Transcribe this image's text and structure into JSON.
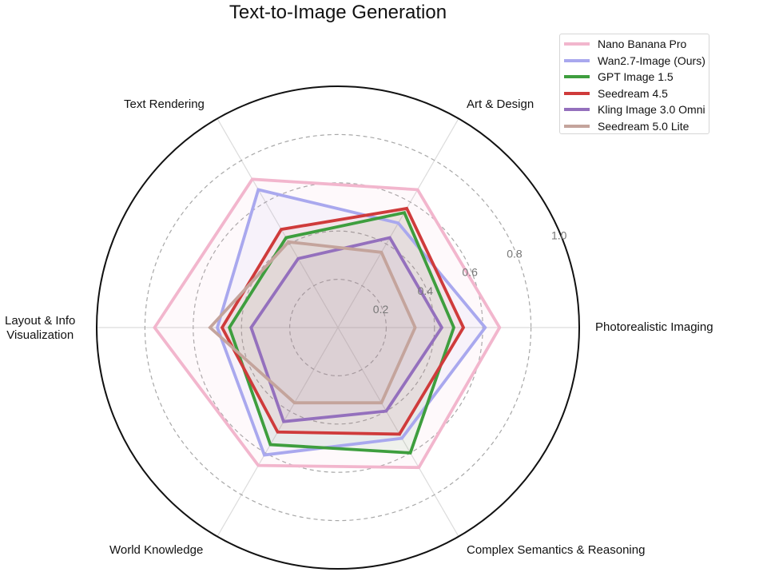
{
  "chart_data": {
    "type": "radar",
    "title": "Text-to-Image Generation",
    "axes": [
      "Photorealistic Imaging",
      "Art & Design",
      "Text Rendering",
      "Layout & Info Visualization",
      "World Knowledge",
      "Complex Semantics & Reasoning"
    ],
    "radial_ticks": [
      "0.2",
      "0.4",
      "0.6",
      "0.8",
      "1.0"
    ],
    "rlim": [
      0,
      1.0
    ],
    "grid": true,
    "legend_position": "upper right",
    "series": [
      {
        "name": "Nano Banana Pro",
        "color": "#f2b6cd",
        "values": [
          0.67,
          0.66,
          0.71,
          0.76,
          0.66,
          0.67
        ]
      },
      {
        "name": "Wan2.7-Image (Ours)",
        "color": "#a9a8ee",
        "values": [
          0.61,
          0.5,
          0.66,
          0.5,
          0.61,
          0.53
        ]
      },
      {
        "name": "GPT Image 1.5",
        "color": "#3e9e3e",
        "values": [
          0.48,
          0.55,
          0.43,
          0.45,
          0.56,
          0.6
        ]
      },
      {
        "name": "Seedream 4.5",
        "color": "#cf3b3b",
        "values": [
          0.52,
          0.57,
          0.47,
          0.48,
          0.5,
          0.51
        ]
      },
      {
        "name": "Kling Image 3.0 Omni",
        "color": "#9470bd",
        "values": [
          0.43,
          0.43,
          0.33,
          0.36,
          0.45,
          0.4
        ]
      },
      {
        "name": "Seedream 5.0 Lite",
        "color": "#c4a49c",
        "values": [
          0.32,
          0.36,
          0.41,
          0.53,
          0.36,
          0.36
        ]
      }
    ]
  },
  "title": "Text-to-Image Generation",
  "axis_labels": {
    "photorealistic": "Photorealistic Imaging",
    "art": "Art & Design",
    "text": "Text Rendering",
    "layout_line1": "Layout & Info",
    "layout_line2": "Visualization",
    "world": "World Knowledge",
    "complex": "Complex Semantics & Reasoning"
  },
  "legend": [
    {
      "label": "Nano Banana Pro",
      "color": "#f2b6cd"
    },
    {
      "label": "Wan2.7-Image (Ours)",
      "color": "#a9a8ee"
    },
    {
      "label": "GPT Image 1.5",
      "color": "#3e9e3e"
    },
    {
      "label": "Seedream 4.5",
      "color": "#cf3b3b"
    },
    {
      "label": "Kling Image 3.0 Omni",
      "color": "#9470bd"
    },
    {
      "label": "Seedream 5.0 Lite",
      "color": "#c4a49c"
    }
  ]
}
